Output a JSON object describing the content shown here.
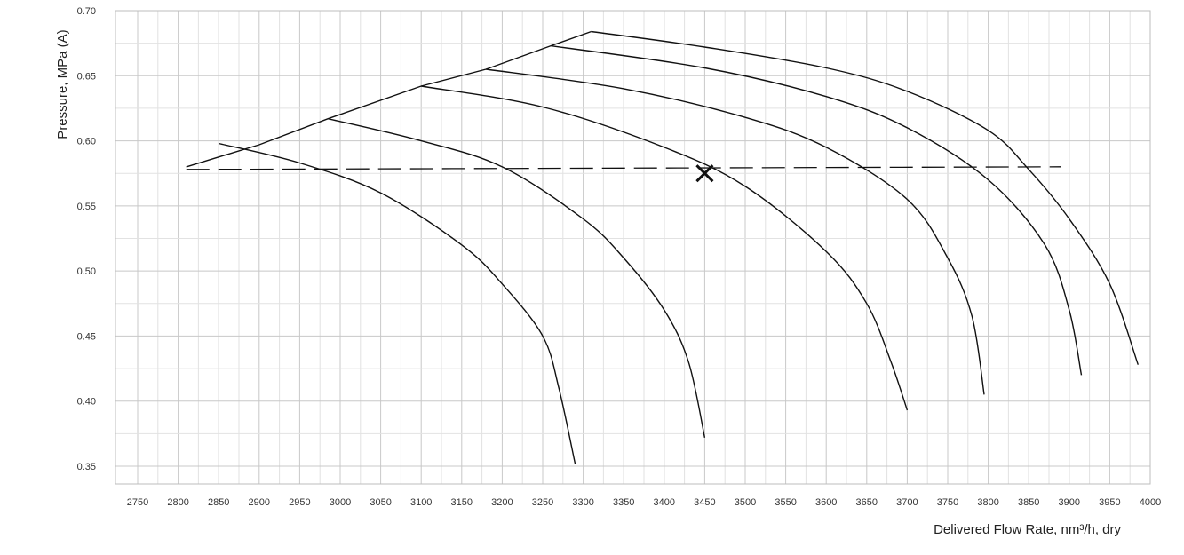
{
  "chart_data": {
    "type": "line",
    "xlabel": "Delivered Flow Rate, nm³/h, dry",
    "ylabel": "Pressure, MPa (A)",
    "xlim": [
      2750,
      4000
    ],
    "ylim": [
      0.35,
      0.7
    ],
    "grid": true,
    "x_ticks": [
      "2750",
      "2800",
      "2850",
      "2900",
      "2950",
      "3000",
      "3050",
      "3100",
      "3150",
      "3200",
      "3250",
      "3300",
      "3350",
      "3400",
      "3450",
      "3500",
      "3550",
      "3600",
      "3650",
      "3700",
      "3750",
      "3800",
      "3850",
      "3900",
      "3950",
      "4000"
    ],
    "y_ticks": [
      "0.35",
      "0.40",
      "0.45",
      "0.50",
      "0.55",
      "0.60",
      "0.65",
      "0.70"
    ],
    "series": [
      {
        "points": [
          [
            2850,
            0.598
          ],
          [
            2950,
            0.583
          ],
          [
            3050,
            0.56
          ],
          [
            3150,
            0.52
          ],
          [
            3200,
            0.49
          ],
          [
            3250,
            0.45
          ],
          [
            3270,
            0.41
          ],
          [
            3290,
            0.352
          ]
        ]
      },
      {
        "points": [
          [
            2985,
            0.617
          ],
          [
            3100,
            0.6
          ],
          [
            3200,
            0.58
          ],
          [
            3300,
            0.54
          ],
          [
            3350,
            0.51
          ],
          [
            3400,
            0.47
          ],
          [
            3430,
            0.43
          ],
          [
            3450,
            0.372
          ]
        ]
      },
      {
        "points": [
          [
            3100,
            0.642
          ],
          [
            3250,
            0.626
          ],
          [
            3400,
            0.595
          ],
          [
            3500,
            0.565
          ],
          [
            3600,
            0.515
          ],
          [
            3650,
            0.475
          ],
          [
            3680,
            0.43
          ],
          [
            3700,
            0.393
          ]
        ]
      },
      {
        "points": [
          [
            3180,
            0.655
          ],
          [
            3350,
            0.64
          ],
          [
            3500,
            0.618
          ],
          [
            3600,
            0.595
          ],
          [
            3700,
            0.555
          ],
          [
            3750,
            0.51
          ],
          [
            3780,
            0.465
          ],
          [
            3795,
            0.405
          ]
        ]
      },
      {
        "points": [
          [
            3260,
            0.673
          ],
          [
            3450,
            0.656
          ],
          [
            3600,
            0.634
          ],
          [
            3700,
            0.61
          ],
          [
            3800,
            0.57
          ],
          [
            3870,
            0.52
          ],
          [
            3900,
            0.47
          ],
          [
            3915,
            0.42
          ]
        ]
      },
      {
        "points": [
          [
            3310,
            0.684
          ],
          [
            3450,
            0.672
          ],
          [
            3600,
            0.656
          ],
          [
            3700,
            0.638
          ],
          [
            3800,
            0.608
          ],
          [
            3850,
            0.578
          ],
          [
            3900,
            0.54
          ],
          [
            3950,
            0.49
          ],
          [
            3985,
            0.428
          ]
        ]
      }
    ],
    "envelope": [
      [
        2810,
        0.58
      ],
      [
        2900,
        0.597
      ],
      [
        2985,
        0.617
      ],
      [
        3100,
        0.642
      ],
      [
        3180,
        0.655
      ],
      [
        3260,
        0.673
      ],
      [
        3310,
        0.684
      ]
    ],
    "reference_line": {
      "y": 0.578,
      "x_start": 2810,
      "x_end": 3890,
      "style": "dashed"
    },
    "operating_point": {
      "x": 3450,
      "y": 0.575,
      "marker": "x"
    }
  }
}
